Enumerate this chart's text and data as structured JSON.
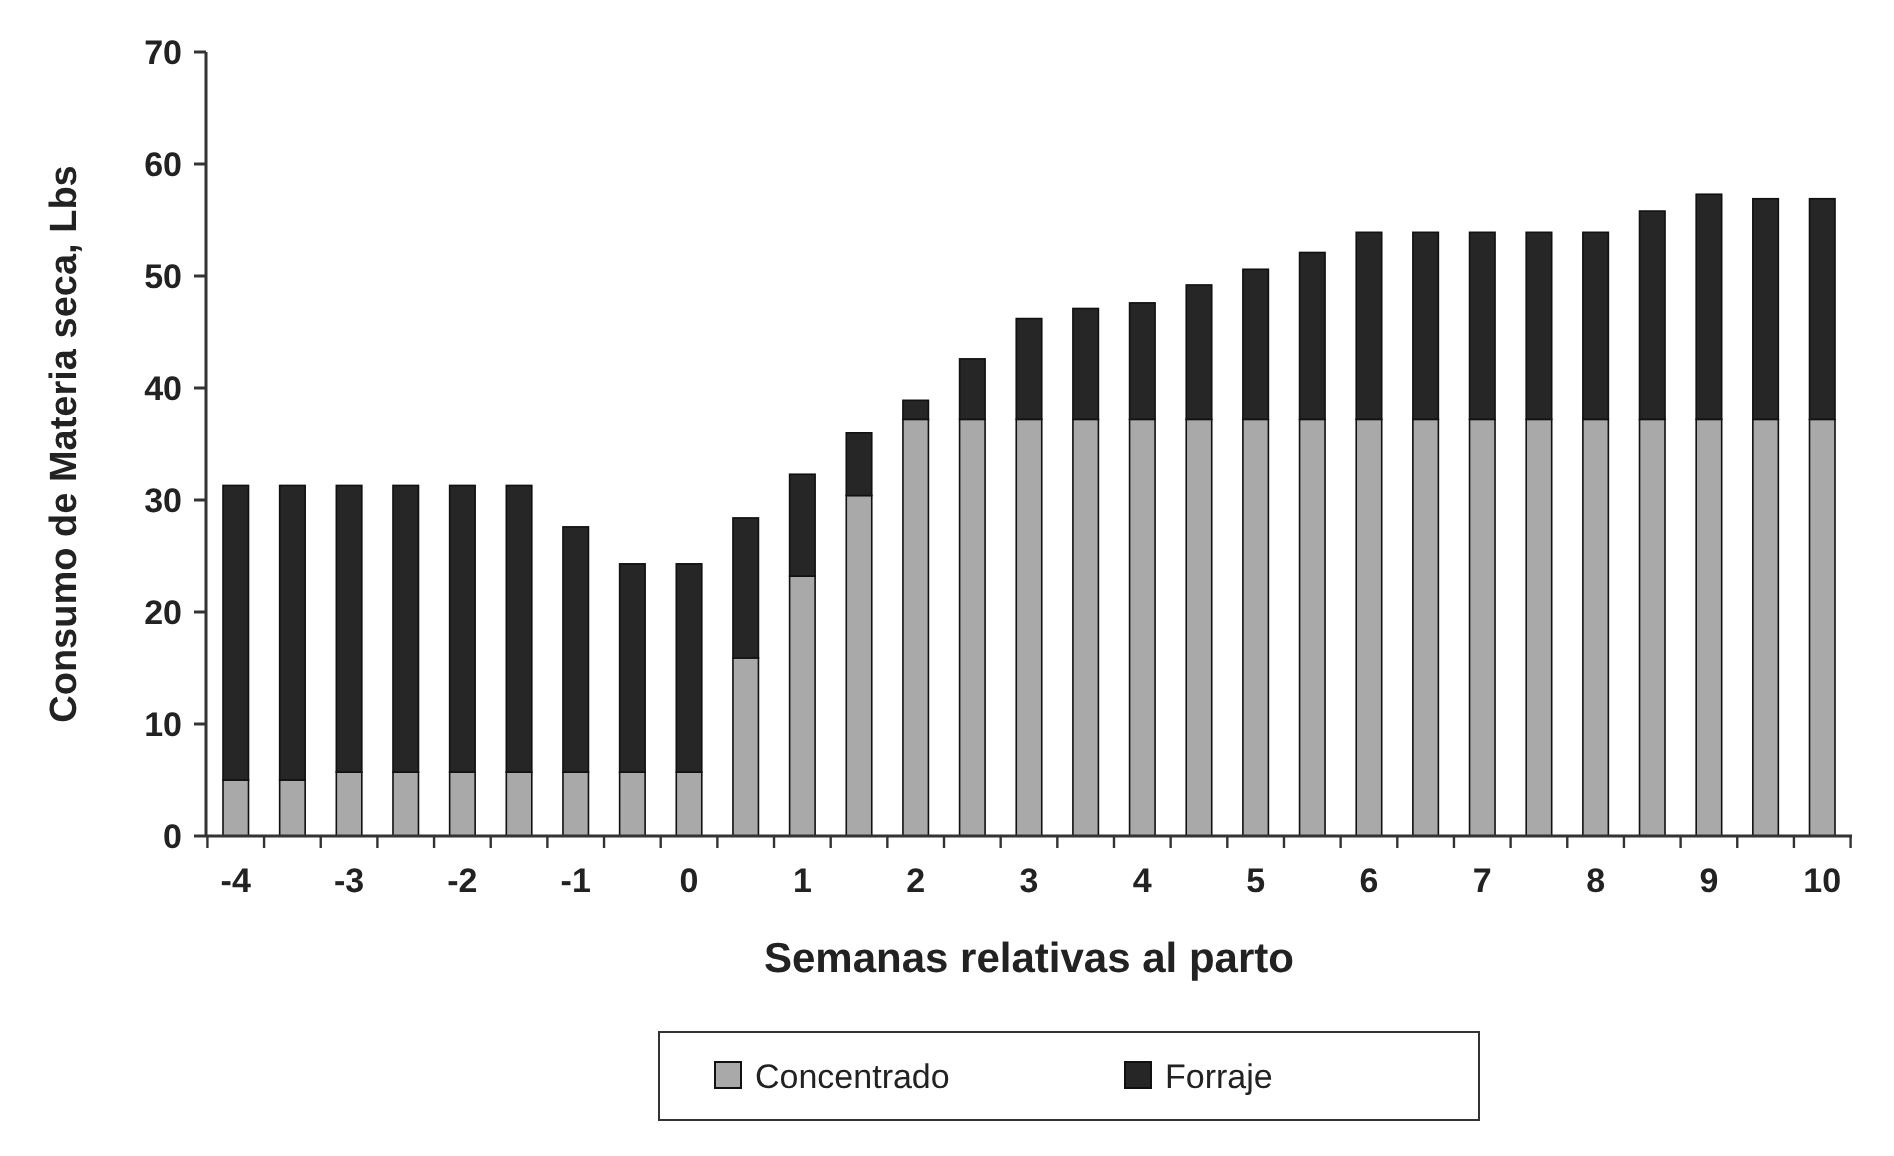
{
  "chart_data": {
    "type": "bar",
    "stacked": true,
    "xlabel": "Semanas relativas al parto",
    "ylabel": "Consumo de Materia seca, Lbs",
    "categories": [
      "-4",
      null,
      "-3",
      null,
      "-2",
      null,
      "-1",
      null,
      "0",
      null,
      "1",
      null,
      "2",
      null,
      "3",
      null,
      "4",
      null,
      "5",
      null,
      "6",
      null,
      "7",
      null,
      "8",
      null,
      "9",
      null,
      "10"
    ],
    "series": [
      {
        "name": "Concentrado",
        "color": "#a9a9a9",
        "values": [
          5.0,
          5.0,
          5.7,
          5.7,
          5.7,
          5.7,
          5.7,
          5.7,
          5.7,
          15.9,
          23.2,
          30.4,
          37.2,
          37.2,
          37.2,
          37.2,
          37.2,
          37.2,
          37.2,
          37.2,
          37.2,
          37.2,
          37.2,
          37.2,
          37.2,
          37.2,
          37.2,
          37.2,
          37.2
        ]
      },
      {
        "name": "Forraje",
        "color": "#262626",
        "values": [
          26.3,
          26.3,
          25.6,
          25.6,
          25.6,
          25.6,
          21.9,
          18.6,
          18.6,
          12.5,
          9.1,
          5.6,
          1.7,
          5.4,
          9.0,
          9.9,
          10.4,
          12.0,
          13.4,
          14.9,
          16.7,
          16.7,
          16.7,
          16.7,
          16.7,
          18.6,
          20.1,
          19.7,
          19.7
        ]
      }
    ],
    "ylim": [
      0,
      70
    ],
    "yticks": [
      0,
      10,
      20,
      30,
      40,
      50,
      60,
      70
    ],
    "grid": false,
    "legend": "bottom"
  }
}
